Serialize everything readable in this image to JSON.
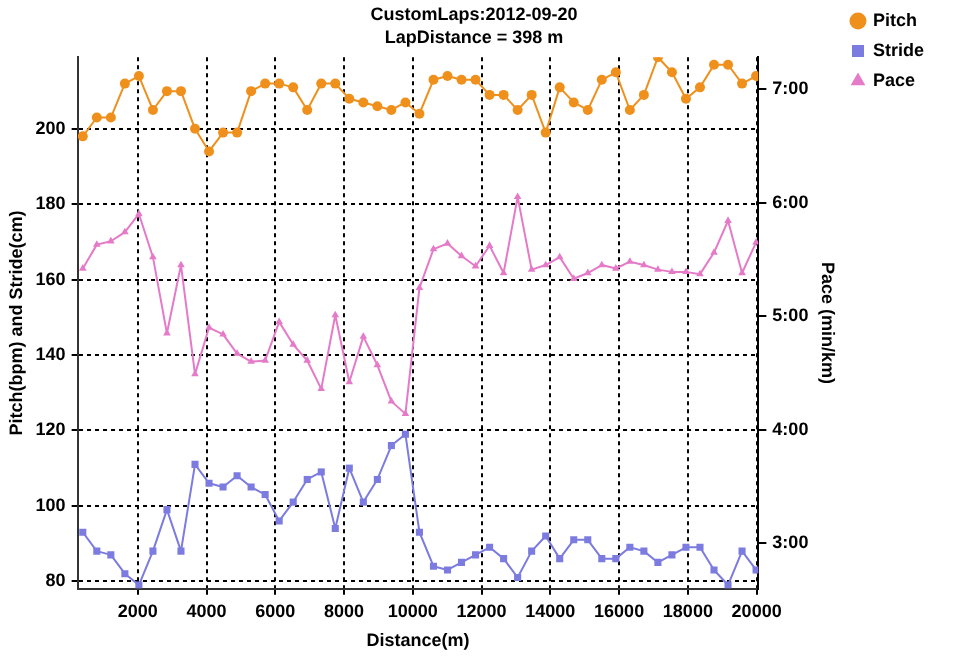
{
  "chart_data": {
    "type": "line",
    "title": "CustomLaps:2012-09-20",
    "subtitle": "LapDistance = 398 m",
    "xlabel": "Distance(m)",
    "ylabel": "Pitch(bpm) and Stride(cm)",
    "y2label": "Pace (min/km)",
    "x": [
      400,
      808,
      1216,
      1624,
      2032,
      2440,
      2848,
      3256,
      3664,
      4072,
      4480,
      4888,
      5296,
      5704,
      6112,
      6520,
      6928,
      7336,
      7744,
      8152,
      8560,
      8968,
      9376,
      9784,
      10192,
      10600,
      11008,
      11416,
      11824,
      12232,
      12640,
      13048,
      13456,
      13864,
      14272,
      14680,
      15088,
      15496,
      15904,
      16312,
      16720,
      17128,
      17536,
      17944,
      18352,
      18760,
      19168,
      19576,
      19984
    ],
    "series": [
      {
        "name": "Pitch",
        "color": "#f0901c",
        "marker": "circle",
        "values": [
          198,
          203,
          203,
          212,
          214,
          205,
          210,
          210,
          200,
          194,
          199,
          199,
          210,
          212,
          212,
          211,
          205,
          212,
          212,
          208,
          207,
          206,
          205,
          207,
          204,
          213,
          214,
          213,
          213,
          209,
          209,
          205,
          209,
          199,
          211,
          207,
          205,
          213,
          215,
          205,
          209,
          219,
          215,
          208,
          211,
          217,
          217,
          212,
          214
        ]
      },
      {
        "name": "Stride",
        "color": "#7b7be0",
        "marker": "square",
        "values": [
          93,
          88,
          87,
          82,
          79,
          88,
          99,
          88,
          111,
          106,
          105,
          108,
          105,
          103,
          96,
          101,
          107,
          109,
          94,
          110,
          101,
          107,
          116,
          119,
          93,
          84,
          83,
          85,
          87,
          89,
          86,
          81,
          88,
          92,
          86,
          91,
          91,
          86,
          86,
          89,
          88,
          85,
          87,
          89,
          89,
          83,
          79,
          88,
          83
        ]
      },
      {
        "name": "Pace",
        "color": "#e57bc8",
        "marker": "triangle",
        "axis": "y2",
        "values": [
          5.42,
          5.63,
          5.66,
          5.74,
          5.9,
          5.52,
          4.85,
          5.45,
          4.49,
          4.9,
          4.84,
          4.67,
          4.6,
          4.61,
          4.95,
          4.75,
          4.61,
          4.36,
          5.01,
          4.42,
          4.82,
          4.57,
          4.25,
          4.14,
          5.25,
          5.59,
          5.64,
          5.53,
          5.44,
          5.62,
          5.38,
          6.05,
          5.41,
          5.45,
          5.52,
          5.33,
          5.38,
          5.45,
          5.42,
          5.48,
          5.45,
          5.41,
          5.39,
          5.39,
          5.37,
          5.56,
          5.84,
          5.38,
          5.65
        ]
      }
    ],
    "xlim": [
      250,
      20050
    ],
    "xticks": [
      2000,
      4000,
      6000,
      8000,
      10000,
      12000,
      14000,
      16000,
      18000,
      20000
    ],
    "ylim": [
      78,
      219
    ],
    "yticks": [
      80,
      100,
      120,
      140,
      160,
      180,
      200
    ],
    "y2lim": [
      2.6,
      7.28
    ],
    "y2ticks": [
      {
        "value": 3,
        "label": "3:00"
      },
      {
        "value": 4,
        "label": "4:00"
      },
      {
        "value": 5,
        "label": "5:00"
      },
      {
        "value": 6,
        "label": "6:00"
      },
      {
        "value": 7,
        "label": "7:00"
      }
    ],
    "grid": true,
    "legend": "top right",
    "line_style": "solid"
  }
}
